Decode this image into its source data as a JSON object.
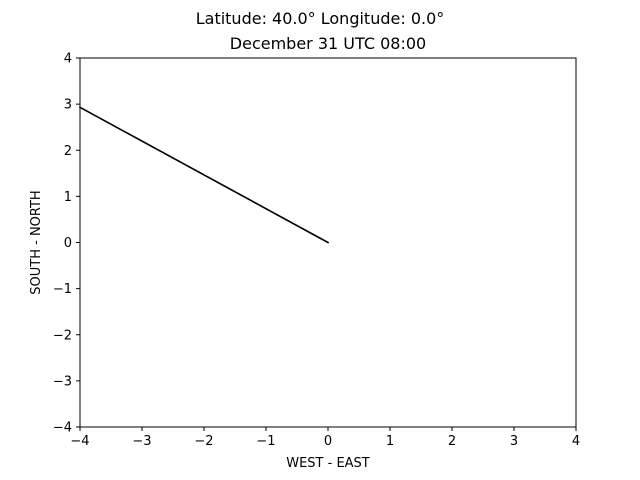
{
  "chart_data": {
    "type": "line",
    "title": "Latitude: 40.0° Longitude: 0.0°",
    "subtitle": "December 31 UTC 08:00",
    "xlabel": "WEST - EAST",
    "ylabel": "SOUTH - NORTH",
    "xlim": [
      -4,
      4
    ],
    "ylim": [
      -4,
      4
    ],
    "xticks": [
      -4,
      -3,
      -2,
      -1,
      0,
      1,
      2,
      3,
      4
    ],
    "yticks": [
      -4,
      -3,
      -2,
      -1,
      0,
      1,
      2,
      3,
      4
    ],
    "xtick_labels": [
      "−4",
      "−3",
      "−2",
      "−1",
      "0",
      "1",
      "2",
      "3",
      "4"
    ],
    "ytick_labels": [
      "−4",
      "−3",
      "−2",
      "−1",
      "0",
      "1",
      "2",
      "3",
      "4"
    ],
    "grid": false,
    "series": [
      {
        "color": "#000000",
        "x": [
          0,
          -4
        ],
        "y": [
          0,
          2.93
        ]
      }
    ]
  }
}
